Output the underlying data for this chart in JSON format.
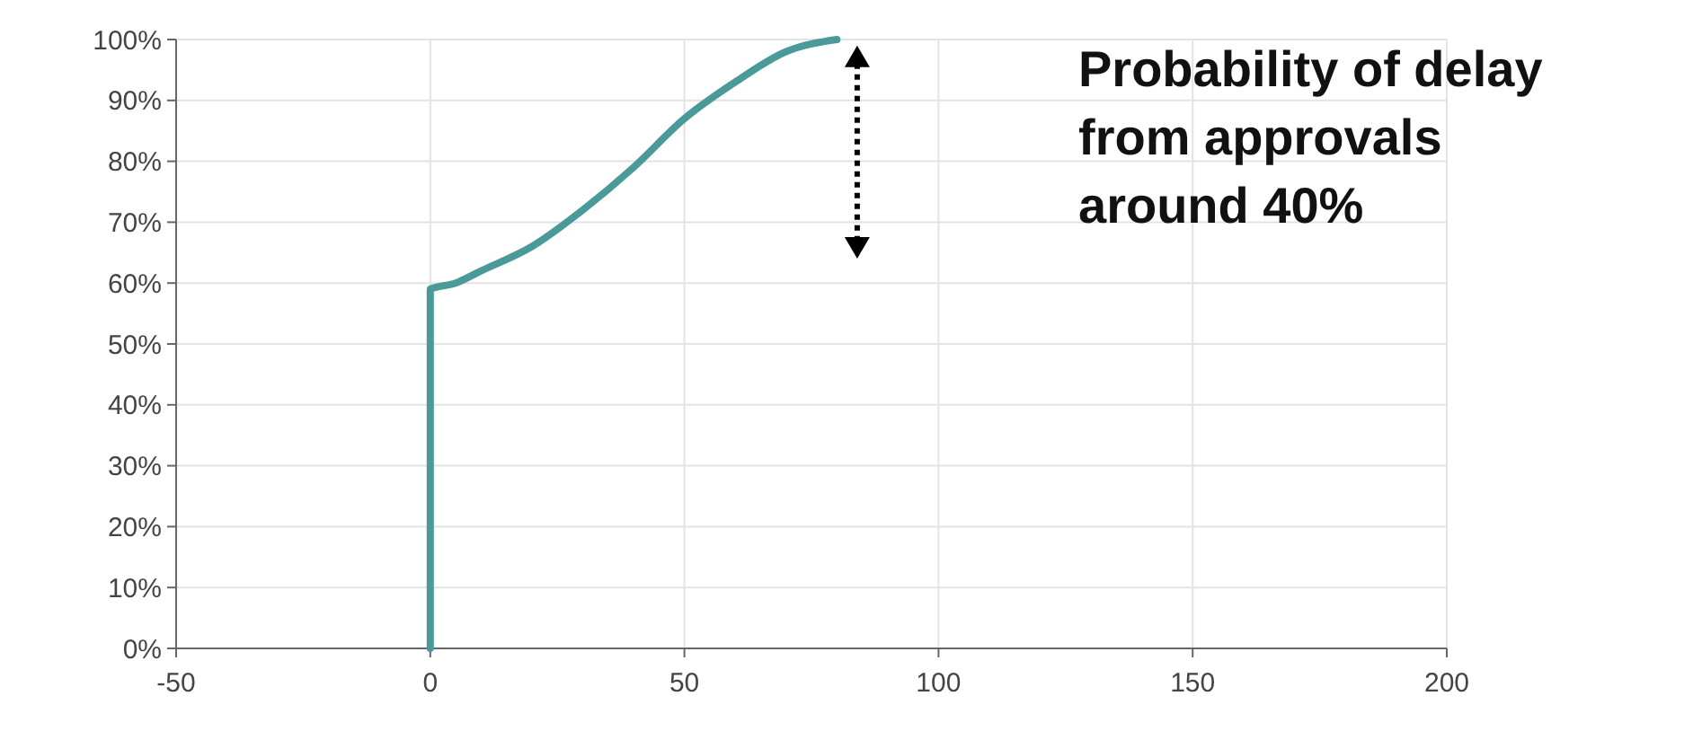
{
  "chart_data": {
    "type": "line",
    "x": [
      0,
      0,
      5,
      10,
      20,
      30,
      40,
      50,
      60,
      70,
      80
    ],
    "series": [
      {
        "color": "#4a9a9a",
        "values": [
          0,
          59,
          60,
          62,
          66,
          72,
          79,
          87,
          93,
          98,
          100
        ]
      }
    ],
    "xlim": [
      -50,
      200
    ],
    "xticks": [
      -50,
      0,
      50,
      100,
      150,
      200
    ],
    "ylim": [
      0,
      100
    ],
    "yticks": [
      {
        "value": 0,
        "label": "0%"
      },
      {
        "value": 10,
        "label": "10%"
      },
      {
        "value": 20,
        "label": "20%"
      },
      {
        "value": 30,
        "label": "30%"
      },
      {
        "value": 40,
        "label": "40%"
      },
      {
        "value": 50,
        "label": "50%"
      },
      {
        "value": 60,
        "label": "60%"
      },
      {
        "value": 70,
        "label": "70%"
      },
      {
        "value": 80,
        "label": "80%"
      },
      {
        "value": 90,
        "label": "90%"
      },
      {
        "value": 100,
        "label": "100%"
      }
    ],
    "grid": true,
    "marker": "none",
    "line_style": "solid",
    "annotations": [
      "Probability of delay from approvals around 40%"
    ]
  }
}
